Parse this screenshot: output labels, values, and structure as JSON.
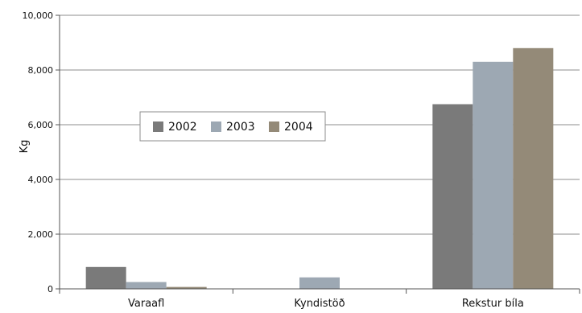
{
  "chart_data": {
    "type": "bar",
    "title": "",
    "xlabel": "",
    "ylabel": "Kg",
    "ylim": [
      0,
      10000
    ],
    "yticks": [
      "0",
      "2,000",
      "4,000",
      "6,000",
      "8,000",
      "10,000"
    ],
    "grid": true,
    "legend_position": "left",
    "categories": [
      "Varaafl",
      "Kyndistöð",
      "Rekstur bíla"
    ],
    "series": [
      {
        "name": "2002",
        "color": "#7a7a7a",
        "values": [
          800,
          0,
          6750
        ]
      },
      {
        "name": "2003",
        "color": "#9da8b3",
        "values": [
          250,
          420,
          8300
        ]
      },
      {
        "name": "2004",
        "color": "#948a78",
        "values": [
          70,
          0,
          8800
        ]
      }
    ]
  }
}
